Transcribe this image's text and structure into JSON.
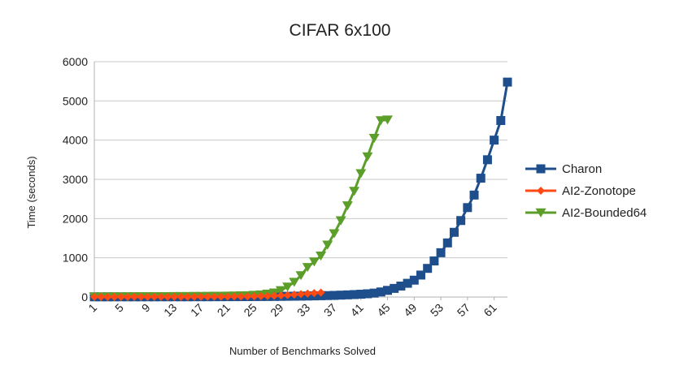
{
  "chart_data": {
    "type": "line",
    "title": "CIFAR 6x100",
    "xlabel": "Number of Benchmarks Solved",
    "ylabel": "Time (seconds)",
    "ylim": [
      0,
      6000
    ],
    "xlim": [
      1,
      63
    ],
    "yticks": [
      "0",
      "1000",
      "2000",
      "3000",
      "4000",
      "5000",
      "6000"
    ],
    "xticks": [
      "1",
      "5",
      "9",
      "13",
      "17",
      "21",
      "25",
      "29",
      "33",
      "37",
      "41",
      "45",
      "49",
      "53",
      "57",
      "61"
    ],
    "grid": "horizontal",
    "legend": "right",
    "series": [
      {
        "name": "Charon",
        "color": "#1f4e8c",
        "marker": "square",
        "x": [
          1,
          2,
          3,
          4,
          5,
          6,
          7,
          8,
          9,
          10,
          11,
          12,
          13,
          14,
          15,
          16,
          17,
          18,
          19,
          20,
          21,
          22,
          23,
          24,
          25,
          26,
          27,
          28,
          29,
          30,
          31,
          32,
          33,
          34,
          35,
          36,
          37,
          38,
          39,
          40,
          41,
          42,
          43,
          44,
          45,
          46,
          47,
          48,
          49,
          50,
          51,
          52,
          53,
          54,
          55,
          56,
          57,
          58,
          59,
          60,
          61,
          62,
          63
        ],
        "values": [
          5,
          5,
          5,
          5,
          5,
          5,
          5,
          5,
          5,
          5,
          6,
          6,
          6,
          6,
          6,
          7,
          7,
          7,
          8,
          8,
          9,
          9,
          10,
          11,
          12,
          13,
          14,
          15,
          17,
          19,
          21,
          23,
          26,
          29,
          33,
          37,
          42,
          48,
          55,
          63,
          72,
          83,
          100,
          130,
          170,
          220,
          280,
          350,
          430,
          560,
          730,
          920,
          1130,
          1380,
          1650,
          1950,
          2280,
          2600,
          3030,
          3500,
          4000,
          4500,
          5480
        ]
      },
      {
        "name": "AI2-Zonotope",
        "color": "#ff4a14",
        "marker": "diamond",
        "x": [
          1,
          2,
          3,
          4,
          5,
          6,
          7,
          8,
          9,
          10,
          11,
          12,
          13,
          14,
          15,
          16,
          17,
          18,
          19,
          20,
          21,
          22,
          23,
          24,
          25,
          26,
          27,
          28,
          29,
          30,
          31,
          32,
          33,
          34,
          35
        ],
        "values": [
          3,
          3,
          3,
          3,
          3,
          3,
          4,
          4,
          4,
          4,
          4,
          5,
          5,
          5,
          6,
          6,
          7,
          7,
          8,
          9,
          10,
          12,
          14,
          16,
          19,
          22,
          26,
          32,
          40,
          50,
          62,
          75,
          88,
          100,
          115
        ]
      },
      {
        "name": "AI2-Bounded64",
        "color": "#5c9e2a",
        "marker": "triangle-down",
        "x": [
          1,
          2,
          3,
          4,
          5,
          6,
          7,
          8,
          9,
          10,
          11,
          12,
          13,
          14,
          15,
          16,
          17,
          18,
          19,
          20,
          21,
          22,
          23,
          24,
          25,
          26,
          27,
          28,
          29,
          30,
          31,
          32,
          33,
          34,
          35,
          36,
          37,
          38,
          39,
          40,
          41,
          42,
          43,
          44,
          45
        ],
        "values": [
          10,
          10,
          11,
          11,
          12,
          12,
          13,
          13,
          14,
          15,
          16,
          17,
          18,
          19,
          20,
          21,
          22,
          24,
          26,
          28,
          30,
          33,
          36,
          40,
          50,
          60,
          80,
          110,
          170,
          260,
          380,
          550,
          760,
          900,
          1050,
          1330,
          1620,
          1950,
          2330,
          2700,
          3150,
          3580,
          4050,
          4500,
          4520
        ]
      }
    ]
  }
}
